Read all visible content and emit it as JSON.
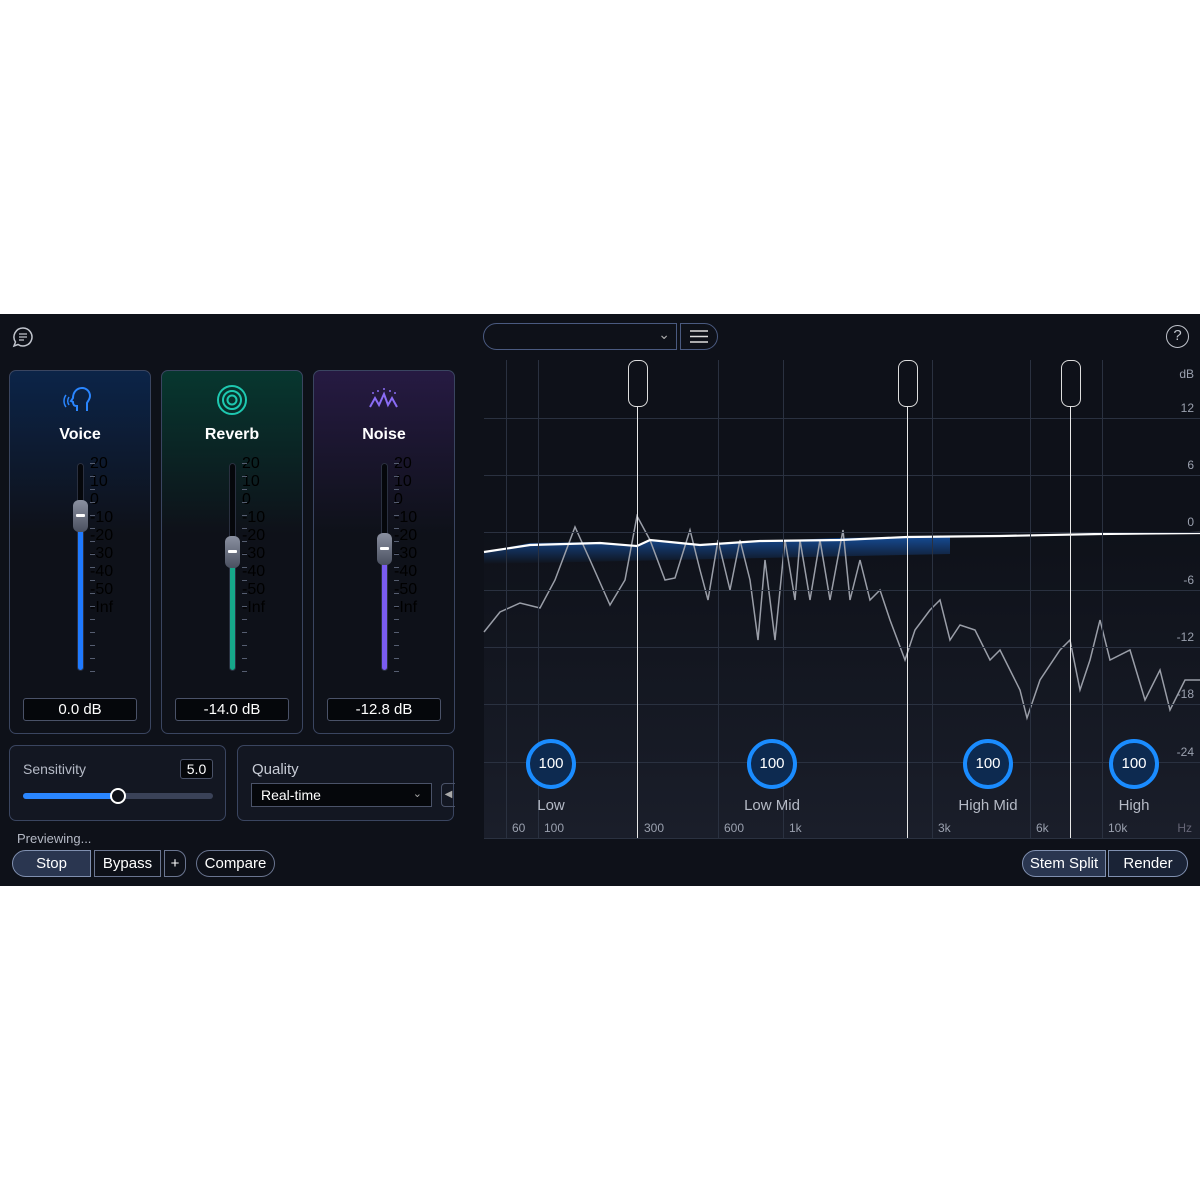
{
  "header": {
    "chat_icon": "chat-bubble-icon",
    "preset_value": "",
    "menu_icon": "hamburger-icon",
    "help_icon": "question-icon"
  },
  "modules": [
    {
      "name": "Voice",
      "icon": "voice-head-icon",
      "value": "0.0 dB",
      "level_db": 0,
      "color": "#1f7aff"
    },
    {
      "name": "Reverb",
      "icon": "reverb-rings-icon",
      "value": "-14.0 dB",
      "level_db": -14,
      "color": "#16a789"
    },
    {
      "name": "Noise",
      "icon": "noise-wave-icon",
      "value": "-12.8 dB",
      "level_db": -12.8,
      "color": "#7a5cf0"
    }
  ],
  "fader_scale": [
    "20",
    "10",
    "0",
    "-10",
    "-20",
    "-30",
    "-40",
    "-50",
    "-Inf"
  ],
  "sensitivity": {
    "label": "Sensitivity",
    "value": "5.0",
    "fraction": 0.5
  },
  "quality": {
    "label": "Quality",
    "selected": "Real-time"
  },
  "status": "Previewing...",
  "transport": {
    "stop": "Stop",
    "bypass": "Bypass",
    "plus": "+",
    "compare": "Compare"
  },
  "actions": {
    "stem_split": "Stem Split",
    "render": "Render"
  },
  "spectrum": {
    "db_unit": "dB",
    "db_labels": [
      "12",
      "6",
      "0",
      "-6",
      "-12",
      "-18",
      "-24"
    ],
    "hz_unit": "Hz",
    "hz_labels": [
      "60",
      "100",
      "300",
      "600",
      "1k",
      "3k",
      "6k",
      "10k"
    ],
    "bands": [
      {
        "name": "Low",
        "value": "100"
      },
      {
        "name": "Low Mid",
        "value": "100"
      },
      {
        "name": "High Mid",
        "value": "100"
      },
      {
        "name": "High",
        "value": "100"
      }
    ]
  }
}
